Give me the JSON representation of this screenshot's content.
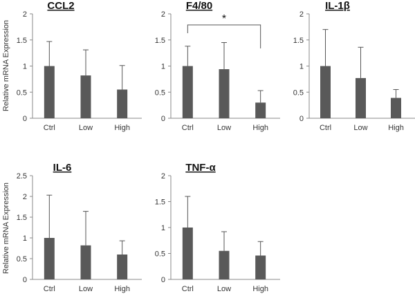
{
  "chart_data": [
    {
      "type": "bar",
      "title": "CCL2",
      "ylabel": "Relative mRNA Expression",
      "categories": [
        "Ctrl",
        "Low",
        "High"
      ],
      "values": [
        1.0,
        0.82,
        0.55
      ],
      "errors": [
        0.47,
        0.49,
        0.46
      ],
      "ylim": [
        0,
        2
      ],
      "yticks": [
        "0",
        "0.5",
        "1",
        "1.5",
        "2"
      ],
      "bar_color": "#595959",
      "significance": null
    },
    {
      "type": "bar",
      "title": "F4/80",
      "ylabel": "",
      "categories": [
        "Ctrl",
        "Low",
        "High"
      ],
      "values": [
        1.0,
        0.94,
        0.3
      ],
      "errors": [
        0.38,
        0.51,
        0.23
      ],
      "ylim": [
        0,
        2
      ],
      "yticks": [
        "0",
        "0.5",
        "1",
        "1.5",
        "2"
      ],
      "bar_color": "#595959",
      "significance": {
        "from": "Ctrl",
        "to": "High",
        "label": "*"
      }
    },
    {
      "type": "bar",
      "title": "IL-1β",
      "ylabel": "",
      "categories": [
        "Ctrl",
        "Low",
        "High"
      ],
      "values": [
        1.0,
        0.77,
        0.39
      ],
      "errors": [
        0.7,
        0.59,
        0.16
      ],
      "ylim": [
        0,
        2
      ],
      "yticks": [
        "0",
        "0.5",
        "1",
        "1.5",
        "2"
      ],
      "bar_color": "#595959",
      "significance": null
    },
    {
      "type": "bar",
      "title": "IL-6",
      "ylabel": "Relative mRNA Expression",
      "categories": [
        "Ctrl",
        "Low",
        "High"
      ],
      "values": [
        1.0,
        0.82,
        0.6
      ],
      "errors": [
        1.03,
        0.82,
        0.33
      ],
      "ylim": [
        0,
        2.5
      ],
      "yticks": [
        "0",
        "0.5",
        "1",
        "1.5",
        "2",
        "2.5"
      ],
      "bar_color": "#595959",
      "significance": null
    },
    {
      "type": "bar",
      "title": "TNF-α",
      "ylabel": "",
      "categories": [
        "Ctrl",
        "Low",
        "High"
      ],
      "values": [
        1.0,
        0.55,
        0.46
      ],
      "errors": [
        0.6,
        0.37,
        0.27
      ],
      "ylim": [
        0,
        2
      ],
      "yticks": [
        "0",
        "0.5",
        "1",
        "1.5",
        "2"
      ],
      "bar_color": "#595959",
      "significance": null
    }
  ]
}
